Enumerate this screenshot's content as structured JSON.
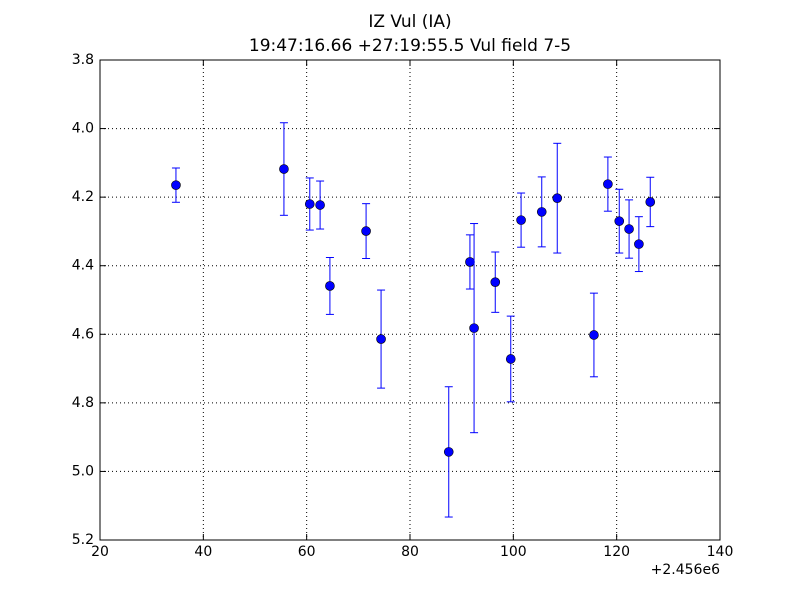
{
  "chart_data": {
    "type": "errorbar-scatter",
    "title": "IZ Vul (IA)",
    "subtitle": "19:47:16.66 +27:19:55.5 Vul field 7-5",
    "x_offset_label": "+2.456e6",
    "color": "#0000ff",
    "grid": true,
    "xlim": [
      20,
      140
    ],
    "xticks": [
      20,
      40,
      60,
      80,
      100,
      120,
      140
    ],
    "ylim": [
      5.2,
      3.8
    ],
    "yticks": [
      3.8,
      {
        "value": 4.0,
        "label": "4.0"
      },
      4.2,
      4.4,
      4.6,
      4.8,
      {
        "value": 5.0,
        "label": "5.0"
      },
      5.2
    ],
    "x": [
      34.7,
      55.6,
      60.6,
      62.6,
      64.5,
      71.5,
      74.4,
      87.5,
      91.6,
      92.4,
      96.5,
      99.5,
      101.5,
      105.5,
      108.5,
      115.6,
      118.3,
      120.5,
      122.4,
      124.3,
      126.5
    ],
    "values": [
      4.165,
      4.118,
      4.22,
      4.223,
      4.459,
      4.299,
      4.614,
      4.943,
      4.389,
      4.582,
      4.448,
      4.672,
      4.267,
      4.243,
      4.203,
      4.602,
      4.162,
      4.27,
      4.293,
      4.337,
      4.214
    ],
    "errors": [
      0.05,
      0.135,
      0.076,
      0.07,
      0.083,
      0.08,
      0.143,
      0.19,
      0.079,
      0.305,
      0.088,
      0.125,
      0.079,
      0.102,
      0.16,
      0.122,
      0.079,
      0.093,
      0.085,
      0.08,
      0.072
    ]
  }
}
